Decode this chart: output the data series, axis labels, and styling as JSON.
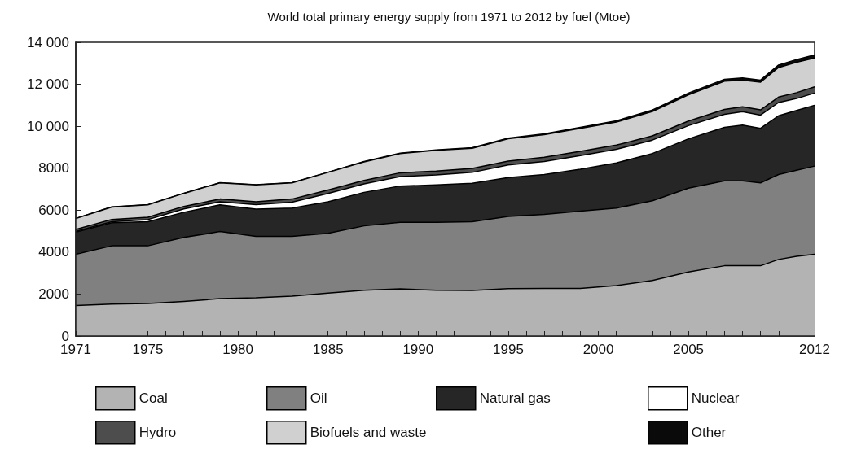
{
  "chart_data": {
    "type": "area",
    "title": "World total primary energy supply from 1971 to 2012 by fuel (Mtoe)",
    "stacked": true,
    "legend": "bottom",
    "grid": false,
    "marker": "none",
    "line_style": "solid",
    "x": [
      1971,
      1973,
      1975,
      1977,
      1979,
      1981,
      1983,
      1985,
      1987,
      1989,
      1991,
      1993,
      1995,
      1997,
      1999,
      2001,
      2003,
      2005,
      2007,
      2008,
      2009,
      2010,
      2011,
      2012
    ],
    "xlim": [
      1971,
      2012
    ],
    "xticks": [
      1971,
      {
        "value": 1972,
        "label": null
      },
      {
        "value": 1973,
        "label": null
      },
      {
        "value": 1974,
        "label": null
      },
      1975,
      {
        "value": 1976,
        "label": null
      },
      {
        "value": 1977,
        "label": null
      },
      {
        "value": 1978,
        "label": null
      },
      {
        "value": 1979,
        "label": null
      },
      1980,
      {
        "value": 1981,
        "label": null
      },
      {
        "value": 1982,
        "label": null
      },
      {
        "value": 1983,
        "label": null
      },
      {
        "value": 1984,
        "label": null
      },
      1985,
      {
        "value": 1986,
        "label": null
      },
      {
        "value": 1987,
        "label": null
      },
      {
        "value": 1988,
        "label": null
      },
      {
        "value": 1989,
        "label": null
      },
      1990,
      {
        "value": 1991,
        "label": null
      },
      {
        "value": 1992,
        "label": null
      },
      {
        "value": 1993,
        "label": null
      },
      {
        "value": 1994,
        "label": null
      },
      1995,
      {
        "value": 1996,
        "label": null
      },
      {
        "value": 1997,
        "label": null
      },
      {
        "value": 1998,
        "label": null
      },
      {
        "value": 1999,
        "label": null
      },
      2000,
      {
        "value": 2001,
        "label": null
      },
      {
        "value": 2002,
        "label": null
      },
      {
        "value": 2003,
        "label": null
      },
      {
        "value": 2004,
        "label": null
      },
      2005,
      {
        "value": 2006,
        "label": null
      },
      {
        "value": 2007,
        "label": null
      },
      {
        "value": 2008,
        "label": null
      },
      {
        "value": 2009,
        "label": null
      },
      {
        "value": 2010,
        "label": null
      },
      {
        "value": 2011,
        "label": null
      },
      2012
    ],
    "ylim": [
      0,
      14000
    ],
    "yticks": [
      0,
      2000,
      4000,
      6000,
      8000,
      {
        "value": 10000,
        "label": "10 000"
      },
      {
        "value": 12000,
        "label": "12 000"
      },
      {
        "value": 14000,
        "label": "14 000"
      }
    ],
    "series": [
      {
        "name": "Coal",
        "color": "#b3b3b3",
        "values": [
          1450,
          1520,
          1550,
          1650,
          1780,
          1820,
          1900,
          2050,
          2180,
          2250,
          2180,
          2170,
          2260,
          2270,
          2270,
          2400,
          2650,
          3050,
          3350,
          3350,
          3350,
          3650,
          3800,
          3900
        ]
      },
      {
        "name": "Oil",
        "color": "#808080",
        "values": [
          2450,
          2780,
          2750,
          3050,
          3200,
          2930,
          2850,
          2850,
          3070,
          3170,
          3240,
          3280,
          3440,
          3530,
          3680,
          3700,
          3800,
          4000,
          4050,
          4050,
          3950,
          4050,
          4100,
          4200
        ]
      },
      {
        "name": "Natural gas",
        "color": "#262626",
        "values": [
          1050,
          1100,
          1150,
          1200,
          1270,
          1300,
          1350,
          1500,
          1600,
          1730,
          1780,
          1830,
          1850,
          1900,
          2000,
          2150,
          2250,
          2350,
          2550,
          2650,
          2600,
          2800,
          2850,
          2900
        ]
      },
      {
        "name": "Nuclear",
        "color": "#ffffff",
        "values": [
          30,
          50,
          100,
          160,
          150,
          210,
          280,
          400,
          400,
          450,
          480,
          520,
          600,
          620,
          650,
          650,
          640,
          630,
          620,
          640,
          630,
          630,
          570,
          580
        ]
      },
      {
        "name": "Hydro",
        "color": "#4d4d4d",
        "values": [
          100,
          110,
          110,
          120,
          130,
          140,
          150,
          160,
          170,
          180,
          180,
          190,
          190,
          200,
          200,
          200,
          200,
          220,
          230,
          240,
          250,
          260,
          280,
          300
        ]
      },
      {
        "name": "Biofuels and waste",
        "color": "#d0d0d0",
        "values": [
          520,
          590,
          590,
          620,
          770,
          800,
          770,
          840,
          880,
          920,
          990,
          960,
          1060,
          1080,
          1100,
          1100,
          1160,
          1250,
          1350,
          1270,
          1320,
          1410,
          1450,
          1370
        ]
      },
      {
        "name": "Other",
        "color": "#0a0a0a",
        "values": [
          10,
          10,
          10,
          10,
          10,
          10,
          10,
          10,
          20,
          20,
          20,
          30,
          30,
          40,
          50,
          60,
          70,
          80,
          90,
          100,
          100,
          120,
          130,
          150
        ]
      }
    ]
  }
}
